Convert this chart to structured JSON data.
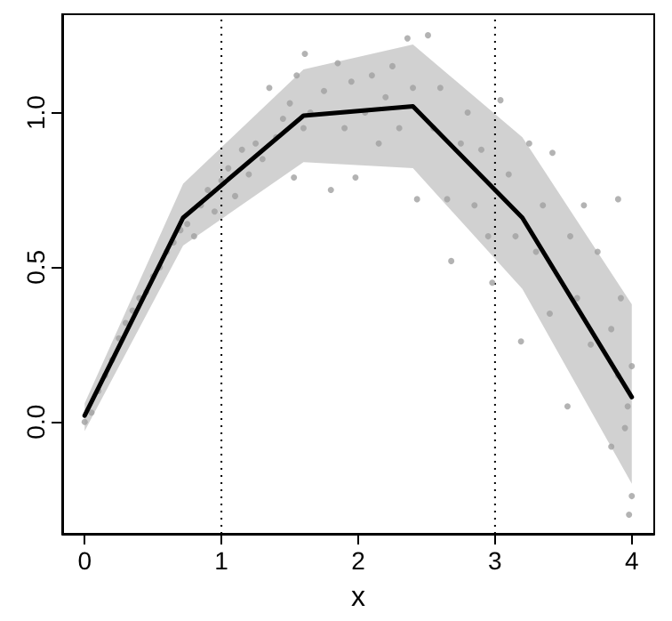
{
  "chart_data": {
    "type": "scatter",
    "xlabel": "x",
    "xlim": [
      -0.164,
      4.164
    ],
    "ylim": [
      -0.362,
      1.318
    ],
    "xticks": [
      0,
      1,
      2,
      3,
      4
    ],
    "yticks": [
      {
        "value": 0,
        "label": "0.0"
      },
      {
        "value": 0.5,
        "label": "0.5"
      },
      {
        "value": 1,
        "label": "1.0"
      }
    ],
    "marker": "circle",
    "ref_lines": [
      {
        "axis": "x",
        "value": 1,
        "line_style": "dotted",
        "color": "#000000"
      },
      {
        "axis": "x",
        "value": 3,
        "line_style": "dotted",
        "color": "#000000"
      }
    ],
    "series": [
      {
        "color": "#a0a0a0",
        "x": [
          0,
          0.05,
          0.1,
          0.15,
          0.2,
          0.25,
          0.3,
          0.35,
          0.4,
          0.45,
          0.5,
          0.55,
          0.6,
          0.65,
          0.7,
          0.75,
          0.8,
          0.85,
          0.9,
          0.95,
          1.0,
          1.05,
          1.1,
          1.15,
          1.2,
          1.25,
          1.3,
          1.35,
          1.4,
          1.45,
          1.5,
          1.55,
          1.53,
          1.6,
          1.65,
          1.61,
          1.75,
          1.8,
          1.85,
          1.9,
          1.95,
          1.98,
          2.05,
          2.1,
          2.15,
          2.2,
          2.25,
          2.3,
          2.36,
          2.4,
          2.43,
          2.51,
          2.55,
          2.6,
          2.65,
          2.68,
          2.75,
          2.8,
          2.85,
          2.9,
          2.95,
          2.98,
          3.04,
          3.1,
          3.15,
          3.19,
          3.25,
          3.3,
          3.35,
          3.4,
          3.42,
          3.53,
          3.55,
          3.6,
          3.65,
          3.7,
          3.75,
          3.9,
          3.85,
          3.9,
          3.95,
          4.0,
          3.98,
          4.0,
          3.97,
          3.92,
          3.85
        ],
        "values": [
          0.0,
          0.03,
          0.1,
          0.15,
          0.2,
          0.27,
          0.32,
          0.36,
          0.4,
          0.42,
          0.47,
          0.5,
          0.55,
          0.58,
          0.62,
          0.64,
          0.6,
          0.7,
          0.75,
          0.68,
          0.78,
          0.82,
          0.73,
          0.88,
          0.8,
          0.9,
          0.85,
          1.08,
          0.92,
          0.98,
          1.03,
          1.12,
          0.79,
          0.95,
          1.0,
          1.19,
          1.07,
          0.75,
          1.16,
          0.95,
          1.1,
          0.79,
          1.0,
          1.12,
          0.9,
          1.05,
          1.15,
          0.95,
          1.24,
          1.08,
          0.72,
          1.25,
          0.95,
          1.08,
          0.72,
          0.52,
          0.9,
          1.0,
          0.7,
          0.88,
          0.6,
          0.45,
          1.04,
          0.8,
          0.6,
          0.26,
          0.9,
          0.55,
          0.7,
          0.35,
          0.87,
          0.05,
          0.6,
          0.4,
          0.7,
          0.25,
          0.55,
          0.72,
          0.3,
          0.15,
          -0.02,
          -0.24,
          -0.3,
          0.18,
          0.05,
          0.4,
          -0.08
        ]
      },
      {
        "type": "line",
        "color": "#000000",
        "marker": "none",
        "line_style": "solid",
        "x": [
          0,
          0.72,
          1.6,
          2.4,
          3.2,
          4.0
        ],
        "values": [
          0.02,
          0.66,
          0.99,
          1.02,
          0.66,
          0.08
        ],
        "lower": [
          -0.03,
          0.57,
          0.84,
          0.82,
          0.43,
          -0.2
        ],
        "upper": [
          0.06,
          0.77,
          1.14,
          1.22,
          0.92,
          0.38
        ]
      }
    ]
  }
}
